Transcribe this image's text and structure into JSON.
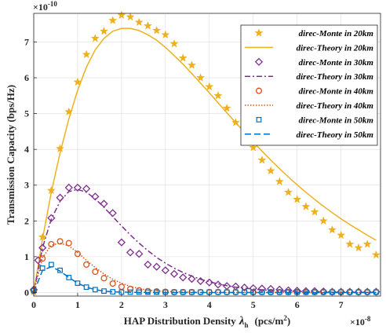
{
  "chart_data": {
    "type": "scatter",
    "xlabel_main": "HAP Distribution Density",
    "xlabel_symbol": "λ",
    "xlabel_sub": "h",
    "xlabel_unit": "(pcs/m",
    "xlabel_unit_sup": "2",
    "xlabel_unit_close": ")",
    "ylabel": "Transmission Capacity   (bps/Hz)",
    "x_multiplier": "×10",
    "x_multiplier_exp": "-8",
    "y_multiplier": "×10",
    "y_multiplier_exp": "-10",
    "xlim": [
      0,
      7.9
    ],
    "ylim": [
      -0.1,
      7.8
    ],
    "xticks": [
      0,
      1,
      2,
      3,
      4,
      5,
      6,
      7
    ],
    "yticks": [
      0,
      1,
      2,
      3,
      4,
      5,
      6,
      7
    ],
    "grid": true,
    "legend_position": "top-right",
    "series": [
      {
        "name": "direc-Monte in 20km",
        "kind": "marker",
        "marker": "star",
        "color": "#EDB120",
        "x": [
          0,
          0.2,
          0.4,
          0.6,
          0.8,
          1.0,
          1.2,
          1.4,
          1.6,
          1.8,
          2.0,
          2.2,
          2.4,
          2.6,
          2.8,
          3.0,
          3.2,
          3.4,
          3.6,
          3.8,
          4.0,
          4.2,
          4.4,
          4.6,
          4.8,
          5.0,
          5.2,
          5.4,
          5.6,
          5.8,
          6.0,
          6.2,
          6.4,
          6.6,
          6.8,
          7.0,
          7.2,
          7.4,
          7.6,
          7.8
        ],
        "y": [
          0.02,
          1.55,
          2.85,
          4.02,
          5.05,
          5.88,
          6.65,
          7.1,
          7.3,
          7.6,
          7.75,
          7.7,
          7.55,
          7.45,
          7.32,
          7.2,
          6.95,
          6.55,
          6.35,
          6.0,
          5.75,
          5.5,
          5.15,
          4.75,
          4.4,
          4.05,
          3.7,
          3.4,
          3.1,
          2.8,
          2.6,
          2.4,
          2.25,
          2.0,
          1.75,
          1.6,
          1.35,
          1.25,
          1.35,
          1.05
        ]
      },
      {
        "name": "direc-Theory in 20km",
        "kind": "line",
        "dash": "",
        "color": "#EDB120",
        "x": [
          0,
          0.2,
          0.4,
          0.6,
          0.8,
          1.0,
          1.2,
          1.4,
          1.6,
          1.8,
          2.0,
          2.2,
          2.4,
          2.6,
          2.8,
          3.0,
          3.2,
          3.4,
          3.6,
          3.8,
          4.0,
          4.2,
          4.4,
          4.6,
          4.8,
          5.0,
          5.2,
          5.4,
          5.6,
          5.8,
          6.0,
          6.2,
          6.4,
          6.6,
          6.8,
          7.0,
          7.2,
          7.4,
          7.6,
          7.8
        ],
        "y": [
          0,
          1.5,
          2.8,
          3.9,
          4.85,
          5.65,
          6.3,
          6.78,
          7.1,
          7.3,
          7.38,
          7.38,
          7.32,
          7.2,
          7.05,
          6.85,
          6.62,
          6.38,
          6.12,
          5.85,
          5.58,
          5.3,
          5.02,
          4.75,
          4.48,
          4.21,
          3.95,
          3.7,
          3.46,
          3.23,
          3.01,
          2.8,
          2.6,
          2.41,
          2.23,
          2.06,
          1.9,
          1.75,
          1.6,
          1.46
        ]
      },
      {
        "name": "direc-Monte in 30km",
        "kind": "marker",
        "marker": "diamond",
        "color": "#7E2F8E",
        "x": [
          0,
          0.1,
          0.2,
          0.4,
          0.6,
          0.8,
          1.0,
          1.2,
          1.4,
          1.6,
          1.8,
          2.0,
          2.2,
          2.4,
          2.6,
          2.8,
          3.0,
          3.2,
          3.4,
          3.6,
          3.8,
          4.0,
          4.2,
          4.4,
          4.6,
          4.8,
          5.0,
          5.2,
          5.4,
          5.6,
          5.8,
          6.0,
          6.2,
          6.4,
          6.6,
          6.8,
          7.0,
          7.2,
          7.4,
          7.6,
          7.8
        ],
        "y": [
          0.08,
          0.9,
          1.25,
          2.08,
          2.65,
          2.93,
          2.93,
          2.9,
          2.68,
          2.48,
          2.22,
          1.4,
          1.12,
          1.08,
          0.78,
          0.72,
          0.62,
          0.52,
          0.42,
          0.38,
          0.32,
          0.28,
          0.22,
          0.18,
          0.17,
          0.14,
          0.12,
          0.11,
          0.1,
          0.08,
          0.06,
          0.05,
          0.04,
          0.04,
          0.03,
          0.02,
          0.02,
          0.02,
          0.02,
          0.02,
          0.02
        ]
      },
      {
        "name": "direc-Theory in 30km",
        "kind": "line",
        "dash": "7,3,2,3",
        "color": "#7E2F8E",
        "x": [
          0,
          0.2,
          0.4,
          0.6,
          0.8,
          1.0,
          1.2,
          1.4,
          1.6,
          1.8,
          2.0,
          2.2,
          2.4,
          2.6,
          2.8,
          3.0,
          3.2,
          3.4,
          3.6,
          3.8,
          4.0,
          4.2,
          4.4,
          4.6,
          4.8,
          5.0,
          5.2,
          5.4,
          5.6,
          5.8,
          6.0,
          6.2,
          6.4,
          6.6,
          6.8,
          7.0,
          7.2,
          7.4,
          7.6,
          7.8
        ],
        "y": [
          0,
          1.25,
          2.05,
          2.55,
          2.82,
          2.88,
          2.8,
          2.62,
          2.38,
          2.12,
          1.86,
          1.61,
          1.38,
          1.17,
          0.98,
          0.82,
          0.68,
          0.56,
          0.46,
          0.37,
          0.3,
          0.24,
          0.19,
          0.15,
          0.12,
          0.095,
          0.075,
          0.06,
          0.047,
          0.037,
          0.03,
          0.023,
          0.018,
          0.014,
          0.011,
          0.009,
          0.007,
          0.005,
          0.004,
          0.003
        ]
      },
      {
        "name": "direc-Monte in 40km",
        "kind": "marker",
        "marker": "circle",
        "color": "#D95319",
        "x": [
          0,
          0.2,
          0.4,
          0.6,
          0.8,
          1.0,
          1.2,
          1.4,
          1.6,
          1.8,
          2.0,
          2.2,
          2.4,
          2.6,
          2.8,
          3.0,
          3.2,
          3.4,
          3.6,
          3.8,
          4.0,
          4.2,
          4.4,
          4.6,
          4.8,
          5.0,
          5.2,
          5.4,
          5.6,
          5.8,
          6.0,
          6.2,
          6.4,
          6.6,
          6.8,
          7.0,
          7.2,
          7.4,
          7.6,
          7.8
        ],
        "y": [
          0.05,
          0.95,
          1.35,
          1.43,
          1.38,
          1.08,
          0.78,
          0.58,
          0.4,
          0.25,
          0.16,
          0.1,
          0.06,
          0.04,
          0.03,
          0.02,
          0.01,
          0.01,
          0.01,
          0.01,
          0.01,
          0.01,
          0.01,
          0.01,
          0.01,
          0.01,
          0.01,
          0.01,
          0.01,
          0.01,
          0.01,
          0.01,
          0.01,
          0.01,
          0.01,
          0.01,
          0.01,
          0.01,
          0.01,
          0.01
        ]
      },
      {
        "name": "direc-Theory in 40km",
        "kind": "line",
        "dash": "1.5,2",
        "color": "#D95319",
        "x": [
          0,
          0.2,
          0.4,
          0.6,
          0.8,
          1.0,
          1.2,
          1.4,
          1.6,
          1.8,
          2.0,
          2.2,
          2.4,
          2.6,
          2.8,
          3.0,
          3.5,
          4.0,
          5.0,
          6.0,
          7.0,
          7.8
        ],
        "y": [
          0,
          0.98,
          1.32,
          1.38,
          1.3,
          1.12,
          0.9,
          0.7,
          0.52,
          0.37,
          0.26,
          0.17,
          0.11,
          0.07,
          0.045,
          0.028,
          0.01,
          0.004,
          0.001,
          0,
          0,
          0
        ]
      },
      {
        "name": "direc-Monte in 50km",
        "kind": "marker",
        "marker": "square",
        "color": "#0072BD",
        "x": [
          0,
          0.2,
          0.4,
          0.6,
          0.8,
          1.0,
          1.2,
          1.4,
          1.6,
          1.8,
          2.0,
          2.2,
          2.4,
          2.6,
          2.8,
          3.0,
          3.2,
          3.4,
          3.6,
          3.8,
          4.0,
          4.2,
          4.4,
          4.6,
          4.8,
          5.0,
          5.2,
          5.4,
          5.6,
          5.8,
          6.0,
          6.2,
          6.4,
          6.6,
          6.8,
          7.0,
          7.2,
          7.4,
          7.6,
          7.8
        ],
        "y": [
          0.05,
          0.68,
          0.78,
          0.62,
          0.42,
          0.26,
          0.15,
          0.08,
          0.04,
          0.02,
          0.01,
          0.01,
          0.01,
          0.01,
          0.01,
          0.01,
          0.01,
          0.01,
          0.01,
          0.01,
          0.01,
          0.01,
          0.01,
          0.01,
          0.01,
          0.01,
          0.01,
          0.01,
          0.01,
          0.01,
          0.01,
          0.01,
          0.01,
          0.01,
          0.01,
          0.01,
          0.01,
          0.01,
          0.01,
          0.01
        ]
      },
      {
        "name": "direc-Theory in 50km",
        "kind": "line",
        "dash": "8,4",
        "color": "#0072BD",
        "x": [
          0,
          0.2,
          0.4,
          0.6,
          0.8,
          1.0,
          1.2,
          1.4,
          1.6,
          1.8,
          2.0,
          2.4,
          3.0,
          4.0,
          5.0,
          6.0,
          7.0,
          7.8
        ],
        "y": [
          0,
          0.62,
          0.72,
          0.6,
          0.42,
          0.26,
          0.15,
          0.08,
          0.04,
          0.02,
          0.01,
          0.003,
          0,
          0,
          0,
          0,
          0,
          0
        ]
      }
    ]
  }
}
